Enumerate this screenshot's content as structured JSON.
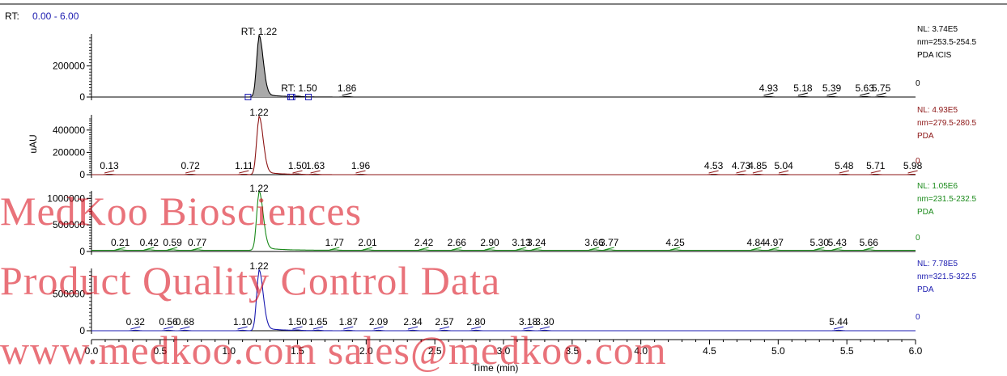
{
  "header": {
    "rt_label": "RT:",
    "rt_range": "0.00 - 6.00"
  },
  "watermark": {
    "line1": "MedKoo Biosciences",
    "line2": "Product Quality Control Data",
    "line3": "www.medkoo.com  sales@medkoo.com"
  },
  "colors": {
    "accent_blue": "#1b1bb0",
    "watermark_red": "#d8000e"
  },
  "chart_data": {
    "type": "line",
    "x_axis": {
      "label": "Time (min)",
      "range": [
        0.0,
        6.0
      ],
      "ticks": [
        "0.0",
        "0.5",
        "1.0",
        "1.5",
        "2.0",
        "2.5",
        "3.0",
        "3.5",
        "4.0",
        "4.5",
        "5.0",
        "5.5",
        "6.0"
      ]
    },
    "y_axis_label": "uAU",
    "panels": [
      {
        "color": "#000000",
        "filled_peak": true,
        "ymax": 374000,
        "yticks": [
          "0",
          "200000"
        ],
        "ytick_values": [
          0,
          200000
        ],
        "info": [
          "NL: 3.74E5",
          "nm=253.5-254.5",
          "PDA  ICIS"
        ],
        "zero_label": "0",
        "main_peak": {
          "rt": 1.22,
          "height": 374000,
          "label": "RT: 1.22"
        },
        "small_peaks": [
          {
            "rt": 1.5,
            "label": "RT: 1.50"
          }
        ],
        "peak_labels": [
          {
            "rt": 1.86,
            "label": "1.86"
          },
          {
            "rt": 4.93,
            "label": "4.93"
          },
          {
            "rt": 5.18,
            "label": "5.18"
          },
          {
            "rt": 5.39,
            "label": "5.39"
          },
          {
            "rt": 5.63,
            "label": "5.63"
          },
          {
            "rt": 5.75,
            "label": "5.75"
          }
        ],
        "integration_markers": [
          1.14,
          1.45,
          1.46,
          1.58
        ]
      },
      {
        "color": "#8c1414",
        "ymax": 493000,
        "yticks": [
          "0",
          "200000",
          "400000"
        ],
        "ytick_values": [
          0,
          200000,
          400000
        ],
        "info": [
          "NL: 4.93E5",
          "nm=279.5-280.5",
          "PDA"
        ],
        "zero_label": "0",
        "main_peak": {
          "rt": 1.22,
          "height": 493000,
          "label": "1.22"
        },
        "peak_labels": [
          {
            "rt": 0.13,
            "label": "0.13"
          },
          {
            "rt": 0.72,
            "label": "0.72"
          },
          {
            "rt": 1.11,
            "label": "1.11"
          },
          {
            "rt": 1.5,
            "label": "1.50"
          },
          {
            "rt": 1.63,
            "label": "1.63"
          },
          {
            "rt": 1.96,
            "label": "1.96"
          },
          {
            "rt": 4.53,
            "label": "4.53"
          },
          {
            "rt": 4.73,
            "label": "4.73"
          },
          {
            "rt": 4.85,
            "label": "4.85"
          },
          {
            "rt": 5.04,
            "label": "5.04"
          },
          {
            "rt": 5.48,
            "label": "5.48"
          },
          {
            "rt": 5.71,
            "label": "5.71"
          },
          {
            "rt": 5.98,
            "label": "5.98"
          }
        ]
      },
      {
        "color": "#1a8a1a",
        "ymax": 1050000,
        "yticks": [
          "0",
          "500000",
          "1000000"
        ],
        "ytick_values": [
          0,
          500000,
          1000000
        ],
        "info": [
          "NL: 1.05E6",
          "nm=231.5-232.5",
          "PDA"
        ],
        "zero_label": "0",
        "main_peak": {
          "rt": 1.22,
          "height": 1050000,
          "label": "1.22"
        },
        "peak_labels": [
          {
            "rt": 0.21,
            "label": "0.21"
          },
          {
            "rt": 0.42,
            "label": "0.42"
          },
          {
            "rt": 0.59,
            "label": "0.59"
          },
          {
            "rt": 0.77,
            "label": "0.77"
          },
          {
            "rt": 1.77,
            "label": "1.77"
          },
          {
            "rt": 2.01,
            "label": "2.01"
          },
          {
            "rt": 2.42,
            "label": "2.42"
          },
          {
            "rt": 2.66,
            "label": "2.66"
          },
          {
            "rt": 2.9,
            "label": "2.90"
          },
          {
            "rt": 3.13,
            "label": "3.13"
          },
          {
            "rt": 3.24,
            "label": "3.24"
          },
          {
            "rt": 3.66,
            "label": "3.66"
          },
          {
            "rt": 3.77,
            "label": "3.77"
          },
          {
            "rt": 4.25,
            "label": "4.25"
          },
          {
            "rt": 4.84,
            "label": "4.84"
          },
          {
            "rt": 4.97,
            "label": "4.97"
          },
          {
            "rt": 5.3,
            "label": "5.30"
          },
          {
            "rt": 5.43,
            "label": "5.43"
          },
          {
            "rt": 5.66,
            "label": "5.66"
          }
        ]
      },
      {
        "color": "#1b1bb0",
        "ymax": 778000,
        "yticks": [
          "0",
          "500000"
        ],
        "ytick_values": [
          0,
          500000
        ],
        "info": [
          "NL: 7.78E5",
          "nm=321.5-322.5",
          "PDA"
        ],
        "zero_label": "0",
        "main_peak": {
          "rt": 1.22,
          "height": 778000,
          "label": "1.22"
        },
        "peak_labels": [
          {
            "rt": 0.32,
            "label": "0.32"
          },
          {
            "rt": 0.56,
            "label": "0.56"
          },
          {
            "rt": 0.68,
            "label": "0.68"
          },
          {
            "rt": 1.1,
            "label": "1.10"
          },
          {
            "rt": 1.5,
            "label": "1.50"
          },
          {
            "rt": 1.65,
            "label": "1.65"
          },
          {
            "rt": 1.87,
            "label": "1.87"
          },
          {
            "rt": 2.09,
            "label": "2.09"
          },
          {
            "rt": 2.34,
            "label": "2.34"
          },
          {
            "rt": 2.57,
            "label": "2.57"
          },
          {
            "rt": 2.8,
            "label": "2.80"
          },
          {
            "rt": 3.18,
            "label": "3.18"
          },
          {
            "rt": 3.3,
            "label": "3.30"
          },
          {
            "rt": 5.44,
            "label": "5.44"
          }
        ]
      }
    ]
  }
}
